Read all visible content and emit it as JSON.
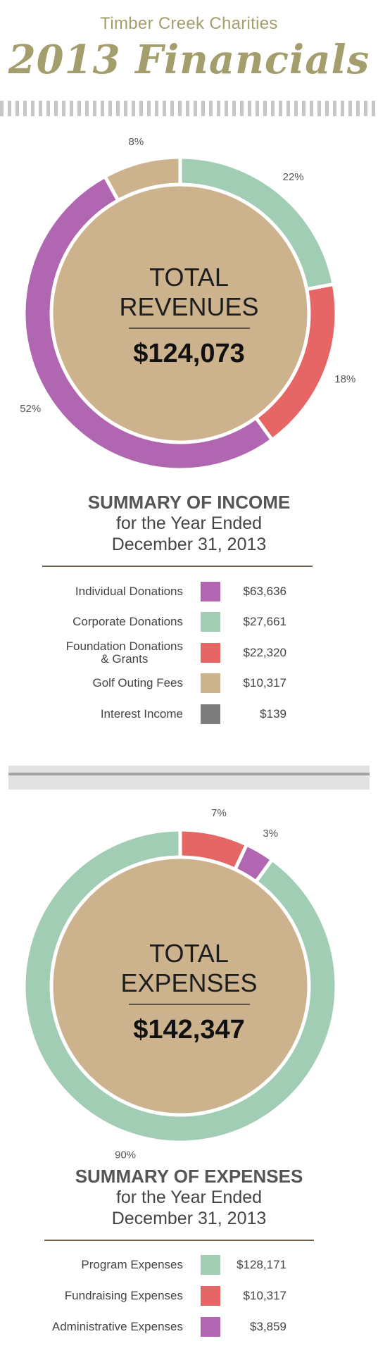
{
  "header": {
    "org": "Timber Creek Charities",
    "title": "2013 Financials"
  },
  "chart_data": [
    {
      "type": "pie",
      "center_label": [
        "TOTAL",
        "REVENUES"
      ],
      "total": "$124,073",
      "slices": [
        {
          "label": "Corporate Donations",
          "percent": "22%",
          "value": 22,
          "color": "#a1cdb4"
        },
        {
          "label": "Foundation Donations & Grants",
          "percent": "18%",
          "value": 18,
          "color": "#e66565"
        },
        {
          "label": "Individual Donations",
          "percent": "52%",
          "value": 52,
          "color": "#b066b0"
        },
        {
          "label": "Golf Outing Fees",
          "percent": "8%",
          "value": 8,
          "color": "#cdb38d"
        }
      ]
    },
    {
      "type": "pie",
      "center_label": [
        "TOTAL",
        "EXPENSES"
      ],
      "total": "$142,347",
      "slices": [
        {
          "label": "Fundraising Expenses",
          "percent": "7%",
          "value": 7,
          "color": "#e66565"
        },
        {
          "label": "Administrative Expenses",
          "percent": "3%",
          "value": 3,
          "color": "#b066b0"
        },
        {
          "label": "Program Expenses",
          "percent": "90%",
          "value": 90,
          "color": "#a1cdb4"
        }
      ]
    }
  ],
  "income_summary": {
    "heading": "SUMMARY OF INCOME",
    "sub1": "for the Year Ended",
    "sub2": "December 31, 2013",
    "rows": [
      {
        "name": "Individual Donations",
        "amount": "$63,636",
        "color": "#b066b0"
      },
      {
        "name": "Corporate Donations",
        "amount": "$27,661",
        "color": "#a1cdb4"
      },
      {
        "name": "Foundation Donations\n& Grants",
        "amount": "$22,320",
        "color": "#e66565"
      },
      {
        "name": "Golf Outing Fees",
        "amount": "$10,317",
        "color": "#cdb38d"
      },
      {
        "name": "Interest Income",
        "amount": "$139",
        "color": "#7d7d7d"
      }
    ]
  },
  "expense_summary": {
    "heading": "SUMMARY OF EXPENSES",
    "sub1": "for the Year Ended",
    "sub2": "December 31, 2013",
    "rows": [
      {
        "name": "Program Expenses",
        "amount": "$128,171",
        "color": "#a1cdb4"
      },
      {
        "name": "Fundraising Expenses",
        "amount": "$10,317",
        "color": "#e66565"
      },
      {
        "name": "Administrative Expenses",
        "amount": "$3,859",
        "color": "#b066b0"
      }
    ]
  }
}
